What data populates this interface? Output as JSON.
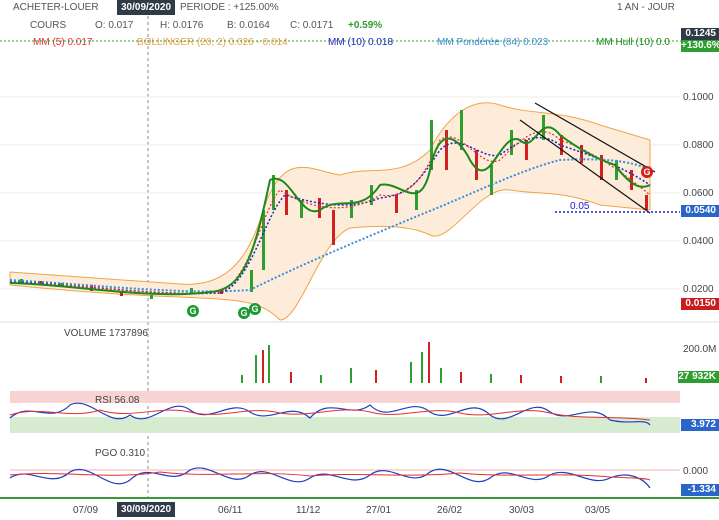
{
  "header": {
    "symbol": "ACHETER-LOUER",
    "cours_label": "COURS",
    "date": "30/09/2020",
    "open": "O: 0.017",
    "high": "H: 0.0176",
    "low": "B: 0.0164",
    "close": "C: 0.0171",
    "change": "+0.59%",
    "period": "PERIODE : +125.00%",
    "range": "1 AN - JOUR"
  },
  "indicators": {
    "mm5": "MM (5) 0.017",
    "bollinger": "BOLLINGER (20, 2) 0.026 - 0.014",
    "mm10": "MM (10) 0.018",
    "mm_pond": "MM Pondérée (84) 0.023",
    "mm_hull": "MM Hull (10) 0.0"
  },
  "tags": {
    "last_high": "0.1245",
    "perf": "+130.6%",
    "current": "0.0540",
    "low": "0.0150",
    "volume_last": "27 932K",
    "rsi_last": "3.972",
    "pgo_last": "-1.334"
  },
  "annotations": {
    "channel_level": "0.05",
    "g_marker": "G"
  },
  "volume_panel": {
    "label": "VOLUME",
    "value": "1737896",
    "axis": "200.0M"
  },
  "rsi_panel": {
    "label": "RSI",
    "value": "56.08"
  },
  "pgo_panel": {
    "label": "PGO",
    "value": "0.310",
    "axis": "0.000"
  },
  "colors": {
    "up": "#2e9e2e",
    "down": "#d0201f",
    "mm5": "#e03030",
    "bollinger": "#f0a040",
    "mm10": "#2020d0",
    "mm_pond": "#3a8ee0",
    "hull": "#1a8a1a",
    "current_tag": "#2a66c9",
    "low_tag": "#c81e1e",
    "topdate": "#2f3b46"
  },
  "chart_data": {
    "type": "candlestick",
    "y_ticks": [
      "0.1000",
      "0.0800",
      "0.0600",
      "0.0400",
      "0.0200"
    ],
    "ylim": [
      0.0095,
      0.1245
    ],
    "x_ticks": [
      "07/09",
      "30/09/2020",
      "06/11",
      "11/12",
      "27/01",
      "26/02",
      "30/03",
      "03/05"
    ],
    "series_points": [
      [
        0.024,
        0.025
      ],
      [
        0.022,
        0.023
      ],
      [
        0.02,
        0.021
      ],
      [
        0.018,
        0.019
      ],
      [
        0.016,
        0.017
      ],
      [
        0.019,
        0.02
      ],
      [
        0.021,
        0.02
      ],
      [
        0.019,
        0.018
      ],
      [
        0.02,
        0.033
      ],
      [
        0.06,
        0.067
      ],
      [
        0.054,
        0.053
      ],
      [
        0.05,
        0.051
      ],
      [
        0.045,
        0.053
      ],
      [
        0.055,
        0.057
      ],
      [
        0.052,
        0.05
      ],
      [
        0.06,
        0.062
      ],
      [
        0.072,
        0.084
      ],
      [
        0.095,
        0.08
      ],
      [
        0.078,
        0.066
      ],
      [
        0.06,
        0.076
      ],
      [
        0.085,
        0.088
      ],
      [
        0.08,
        0.079
      ],
      [
        0.075,
        0.074
      ],
      [
        0.07,
        0.065
      ],
      [
        0.062,
        0.054
      ]
    ]
  }
}
